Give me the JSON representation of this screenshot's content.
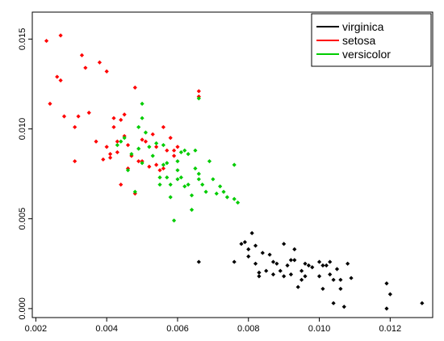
{
  "chart_data": {
    "type": "scatter",
    "title": "",
    "xlabel": "",
    "ylabel": "",
    "xlim": [
      0.0019,
      0.0132
    ],
    "ylim": [
      -0.0005,
      0.0165
    ],
    "x_ticks": [
      {
        "value": 0.002,
        "label": "0.002"
      },
      {
        "value": 0.004,
        "label": "0.004"
      },
      {
        "value": 0.006,
        "label": "0.006"
      },
      {
        "value": 0.008,
        "label": "0.008"
      },
      {
        "value": 0.01,
        "label": "0.010"
      },
      {
        "value": 0.012,
        "label": "0.012"
      }
    ],
    "y_ticks": [
      {
        "value": 0.0,
        "label": "0.000"
      },
      {
        "value": 0.005,
        "label": "0.005"
      },
      {
        "value": 0.01,
        "label": "0.010"
      },
      {
        "value": 0.015,
        "label": "0.015"
      }
    ],
    "legend_position": "top-right",
    "series": [
      {
        "name": "virginica",
        "color": "#000000",
        "points": [
          [
            0.0066,
            0.0026
          ],
          [
            0.0076,
            0.0026
          ],
          [
            0.0078,
            0.0036
          ],
          [
            0.0079,
            0.0037
          ],
          [
            0.008,
            0.0033
          ],
          [
            0.008,
            0.0029
          ],
          [
            0.0081,
            0.0042
          ],
          [
            0.0082,
            0.0035
          ],
          [
            0.0082,
            0.0025
          ],
          [
            0.0083,
            0.002
          ],
          [
            0.0083,
            0.0018
          ],
          [
            0.0084,
            0.0031
          ],
          [
            0.0085,
            0.0021
          ],
          [
            0.0086,
            0.003
          ],
          [
            0.0087,
            0.0026
          ],
          [
            0.0087,
            0.0019
          ],
          [
            0.0088,
            0.0025
          ],
          [
            0.0089,
            0.0021
          ],
          [
            0.009,
            0.0036
          ],
          [
            0.009,
            0.0018
          ],
          [
            0.0091,
            0.0024
          ],
          [
            0.0092,
            0.0027
          ],
          [
            0.0092,
            0.0019
          ],
          [
            0.0093,
            0.0033
          ],
          [
            0.0093,
            0.0027
          ],
          [
            0.0094,
            0.0012
          ],
          [
            0.0095,
            0.0016
          ],
          [
            0.0095,
            0.0021
          ],
          [
            0.0096,
            0.0025
          ],
          [
            0.0096,
            0.0018
          ],
          [
            0.0097,
            0.0024
          ],
          [
            0.0098,
            0.0023
          ],
          [
            0.01,
            0.0026
          ],
          [
            0.01,
            0.0018
          ],
          [
            0.0101,
            0.0024
          ],
          [
            0.0101,
            0.0011
          ],
          [
            0.0102,
            0.0024
          ],
          [
            0.0103,
            0.0026
          ],
          [
            0.0103,
            0.0019
          ],
          [
            0.0104,
            0.0016
          ],
          [
            0.0104,
            0.0003
          ],
          [
            0.0105,
            0.0022
          ],
          [
            0.0106,
            0.0016
          ],
          [
            0.0106,
            0.0011
          ],
          [
            0.0107,
            0.0001
          ],
          [
            0.0108,
            0.0025
          ],
          [
            0.0109,
            0.0017
          ],
          [
            0.0119,
            0.0014
          ],
          [
            0.0119,
            0.0
          ],
          [
            0.012,
            0.0008
          ],
          [
            0.0129,
            0.0003
          ]
        ]
      },
      {
        "name": "setosa",
        "color": "#ff0000",
        "points": [
          [
            0.0023,
            0.0149
          ],
          [
            0.0024,
            0.0114
          ],
          [
            0.0026,
            0.0129
          ],
          [
            0.0027,
            0.0152
          ],
          [
            0.0027,
            0.0127
          ],
          [
            0.0028,
            0.0107
          ],
          [
            0.0031,
            0.0101
          ],
          [
            0.0031,
            0.0082
          ],
          [
            0.0032,
            0.0107
          ],
          [
            0.0033,
            0.0141
          ],
          [
            0.0034,
            0.0134
          ],
          [
            0.0035,
            0.0109
          ],
          [
            0.0037,
            0.0093
          ],
          [
            0.0038,
            0.0137
          ],
          [
            0.0039,
            0.0083
          ],
          [
            0.004,
            0.0132
          ],
          [
            0.004,
            0.009
          ],
          [
            0.0041,
            0.0086
          ],
          [
            0.0041,
            0.0084
          ],
          [
            0.0042,
            0.0106
          ],
          [
            0.0042,
            0.0101
          ],
          [
            0.0043,
            0.0093
          ],
          [
            0.0043,
            0.0087
          ],
          [
            0.0044,
            0.0105
          ],
          [
            0.0044,
            0.0069
          ],
          [
            0.0045,
            0.0108
          ],
          [
            0.0045,
            0.0096
          ],
          [
            0.0046,
            0.0091
          ],
          [
            0.0046,
            0.0078
          ],
          [
            0.0047,
            0.0085
          ],
          [
            0.0048,
            0.0123
          ],
          [
            0.0048,
            0.0064
          ],
          [
            0.0049,
            0.0082
          ],
          [
            0.005,
            0.0094
          ],
          [
            0.005,
            0.0082
          ],
          [
            0.0051,
            0.0093
          ],
          [
            0.0052,
            0.0079
          ],
          [
            0.0053,
            0.0097
          ],
          [
            0.0054,
            0.009
          ],
          [
            0.0054,
            0.008
          ],
          [
            0.0055,
            0.0077
          ],
          [
            0.0056,
            0.0101
          ],
          [
            0.0056,
            0.0078
          ],
          [
            0.0057,
            0.0088
          ],
          [
            0.0058,
            0.0095
          ],
          [
            0.0059,
            0.0088
          ],
          [
            0.0059,
            0.0085
          ],
          [
            0.006,
            0.009
          ],
          [
            0.0066,
            0.0121
          ],
          [
            0.0066,
            0.0118
          ]
        ]
      },
      {
        "name": "versicolor",
        "color": "#00cc00",
        "points": [
          [
            0.0043,
            0.0091
          ],
          [
            0.0044,
            0.0093
          ],
          [
            0.0045,
            0.0095
          ],
          [
            0.0046,
            0.0077
          ],
          [
            0.0047,
            0.0086
          ],
          [
            0.0048,
            0.0065
          ],
          [
            0.0049,
            0.0101
          ],
          [
            0.0049,
            0.0089
          ],
          [
            0.005,
            0.0114
          ],
          [
            0.005,
            0.0106
          ],
          [
            0.005,
            0.0081
          ],
          [
            0.0051,
            0.0098
          ],
          [
            0.0052,
            0.009
          ],
          [
            0.0053,
            0.0085
          ],
          [
            0.0054,
            0.0092
          ],
          [
            0.0055,
            0.0073
          ],
          [
            0.0055,
            0.0069
          ],
          [
            0.0056,
            0.0091
          ],
          [
            0.0056,
            0.008
          ],
          [
            0.0057,
            0.0081
          ],
          [
            0.0057,
            0.0073
          ],
          [
            0.0058,
            0.0062
          ],
          [
            0.0058,
            0.0069
          ],
          [
            0.0059,
            0.0049
          ],
          [
            0.006,
            0.0082
          ],
          [
            0.006,
            0.0077
          ],
          [
            0.006,
            0.0072
          ],
          [
            0.0061,
            0.0087
          ],
          [
            0.0061,
            0.0073
          ],
          [
            0.0062,
            0.0088
          ],
          [
            0.0062,
            0.0068
          ],
          [
            0.0063,
            0.0086
          ],
          [
            0.0063,
            0.0069
          ],
          [
            0.0064,
            0.0063
          ],
          [
            0.0064,
            0.0055
          ],
          [
            0.0065,
            0.0088
          ],
          [
            0.0065,
            0.0078
          ],
          [
            0.0066,
            0.0075
          ],
          [
            0.0066,
            0.0072
          ],
          [
            0.0066,
            0.0117
          ],
          [
            0.0067,
            0.0069
          ],
          [
            0.0068,
            0.0065
          ],
          [
            0.0069,
            0.0082
          ],
          [
            0.007,
            0.0072
          ],
          [
            0.0071,
            0.0064
          ],
          [
            0.0072,
            0.0068
          ],
          [
            0.0073,
            0.0065
          ],
          [
            0.0074,
            0.0062
          ],
          [
            0.0076,
            0.008
          ],
          [
            0.0076,
            0.0061
          ],
          [
            0.0077,
            0.0059
          ]
        ]
      }
    ]
  }
}
